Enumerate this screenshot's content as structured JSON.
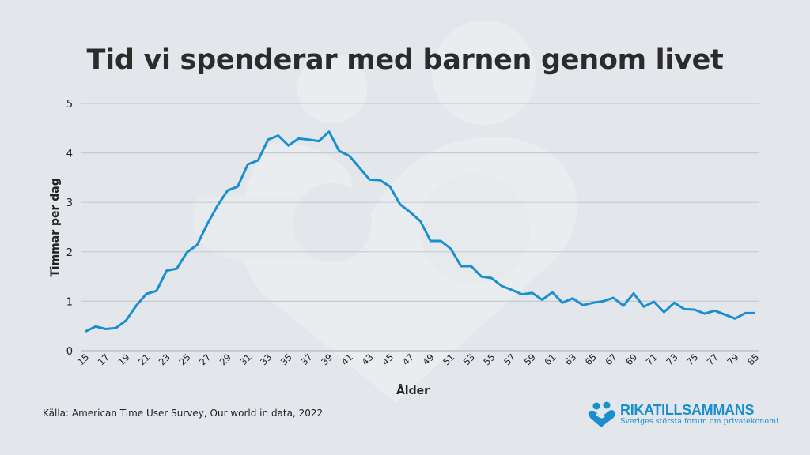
{
  "title": "Tid vi spenderar med barnen genom livet",
  "source": "Källa: American Time User Survey, Our world in data, 2022",
  "logo": {
    "name": "RIKATILLSAMMANS",
    "tagline": "Sveriges största forum om privatekonomi"
  },
  "colors": {
    "line": "#1a8fd0",
    "background": "#e3e7eb",
    "grid": "#c4c8cc"
  },
  "chart_data": {
    "type": "line",
    "title": "Tid vi spenderar med barnen genom livet",
    "xlabel": "Ålder",
    "ylabel": "Timmar per dag",
    "ylim": [
      0,
      5
    ],
    "yticks": [
      "0",
      "1",
      "2",
      "3",
      "4",
      "5"
    ],
    "grid": true,
    "categories": [
      "15",
      "16",
      "17",
      "18",
      "19",
      "20",
      "21",
      "22",
      "23",
      "24",
      "25",
      "26",
      "27",
      "28",
      "29",
      "30",
      "31",
      "32",
      "33",
      "34",
      "35",
      "36",
      "37",
      "38",
      "39",
      "40",
      "41",
      "42",
      "43",
      "44",
      "45",
      "46",
      "47",
      "48",
      "49",
      "50",
      "51",
      "52",
      "53",
      "54",
      "55",
      "56",
      "57",
      "58",
      "59",
      "60",
      "61",
      "62",
      "63",
      "64",
      "65",
      "66",
      "67",
      "68",
      "69",
      "70",
      "71",
      "72",
      "73",
      "74",
      "75",
      "76",
      "77",
      "78",
      "79",
      "80",
      "85"
    ],
    "xticks": [
      "15",
      "17",
      "19",
      "21",
      "23",
      "25",
      "27",
      "29",
      "31",
      "33",
      "35",
      "37",
      "39",
      "41",
      "43",
      "45",
      "47",
      "49",
      "51",
      "53",
      "55",
      "57",
      "59",
      "61",
      "63",
      "65",
      "67",
      "69",
      "71",
      "73",
      "75",
      "77",
      "79",
      "85"
    ],
    "series": [
      {
        "name": "Timmar per dag",
        "values": [
          0.39,
          0.49,
          0.44,
          0.46,
          0.61,
          0.91,
          1.15,
          1.21,
          1.62,
          1.66,
          1.99,
          2.14,
          2.56,
          2.93,
          3.24,
          3.32,
          3.77,
          3.85,
          4.27,
          4.35,
          4.15,
          4.29,
          4.27,
          4.24,
          4.43,
          4.04,
          3.94,
          3.7,
          3.46,
          3.45,
          3.32,
          2.96,
          2.8,
          2.62,
          2.22,
          2.22,
          2.06,
          1.71,
          1.71,
          1.5,
          1.47,
          1.31,
          1.23,
          1.14,
          1.17,
          1.03,
          1.18,
          0.97,
          1.06,
          0.92,
          0.97,
          1.0,
          1.07,
          0.91,
          1.16,
          0.89,
          0.99,
          0.78,
          0.97,
          0.84,
          0.83,
          0.75,
          0.81,
          0.73,
          0.65,
          0.76,
          0.76
        ]
      }
    ]
  }
}
